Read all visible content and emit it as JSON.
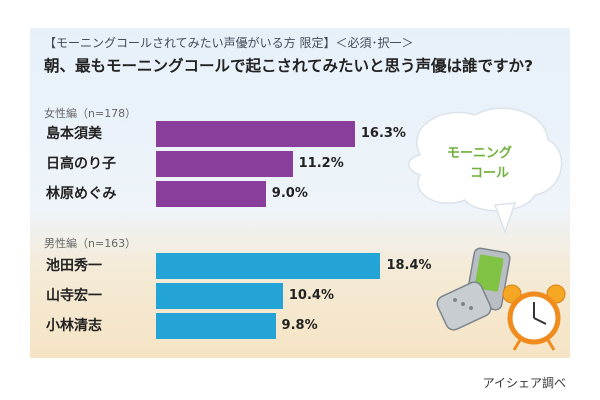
{
  "header": {
    "condition": "【モーニングコールされてみたい声優がいる方 限定】＜必須･択一＞",
    "question": "朝、最もモーニングコールで起こされてみたいと思う声優は誰ですか?"
  },
  "bubble": {
    "line1": "モーニング",
    "line2": "コール"
  },
  "source": "アイシェア調べ",
  "colors": {
    "female": "#8a3e9b",
    "male": "#24a3d6"
  },
  "chart_data": {
    "type": "bar",
    "orientation": "horizontal",
    "groups": [
      {
        "label": "女性編（n=178）",
        "categories": [
          "島本須美",
          "日高のり子",
          "林原めぐみ"
        ],
        "values": [
          16.3,
          11.2,
          9.0
        ],
        "labels": [
          "16.3%",
          "11.2%",
          "9.0%"
        ]
      },
      {
        "label": "男性編（n=163）",
        "categories": [
          "池田秀一",
          "山寺宏一",
          "小林清志"
        ],
        "values": [
          18.4,
          10.4,
          9.8
        ],
        "labels": [
          "18.4%",
          "10.4%",
          "9.8%"
        ]
      }
    ],
    "unit": "%"
  }
}
